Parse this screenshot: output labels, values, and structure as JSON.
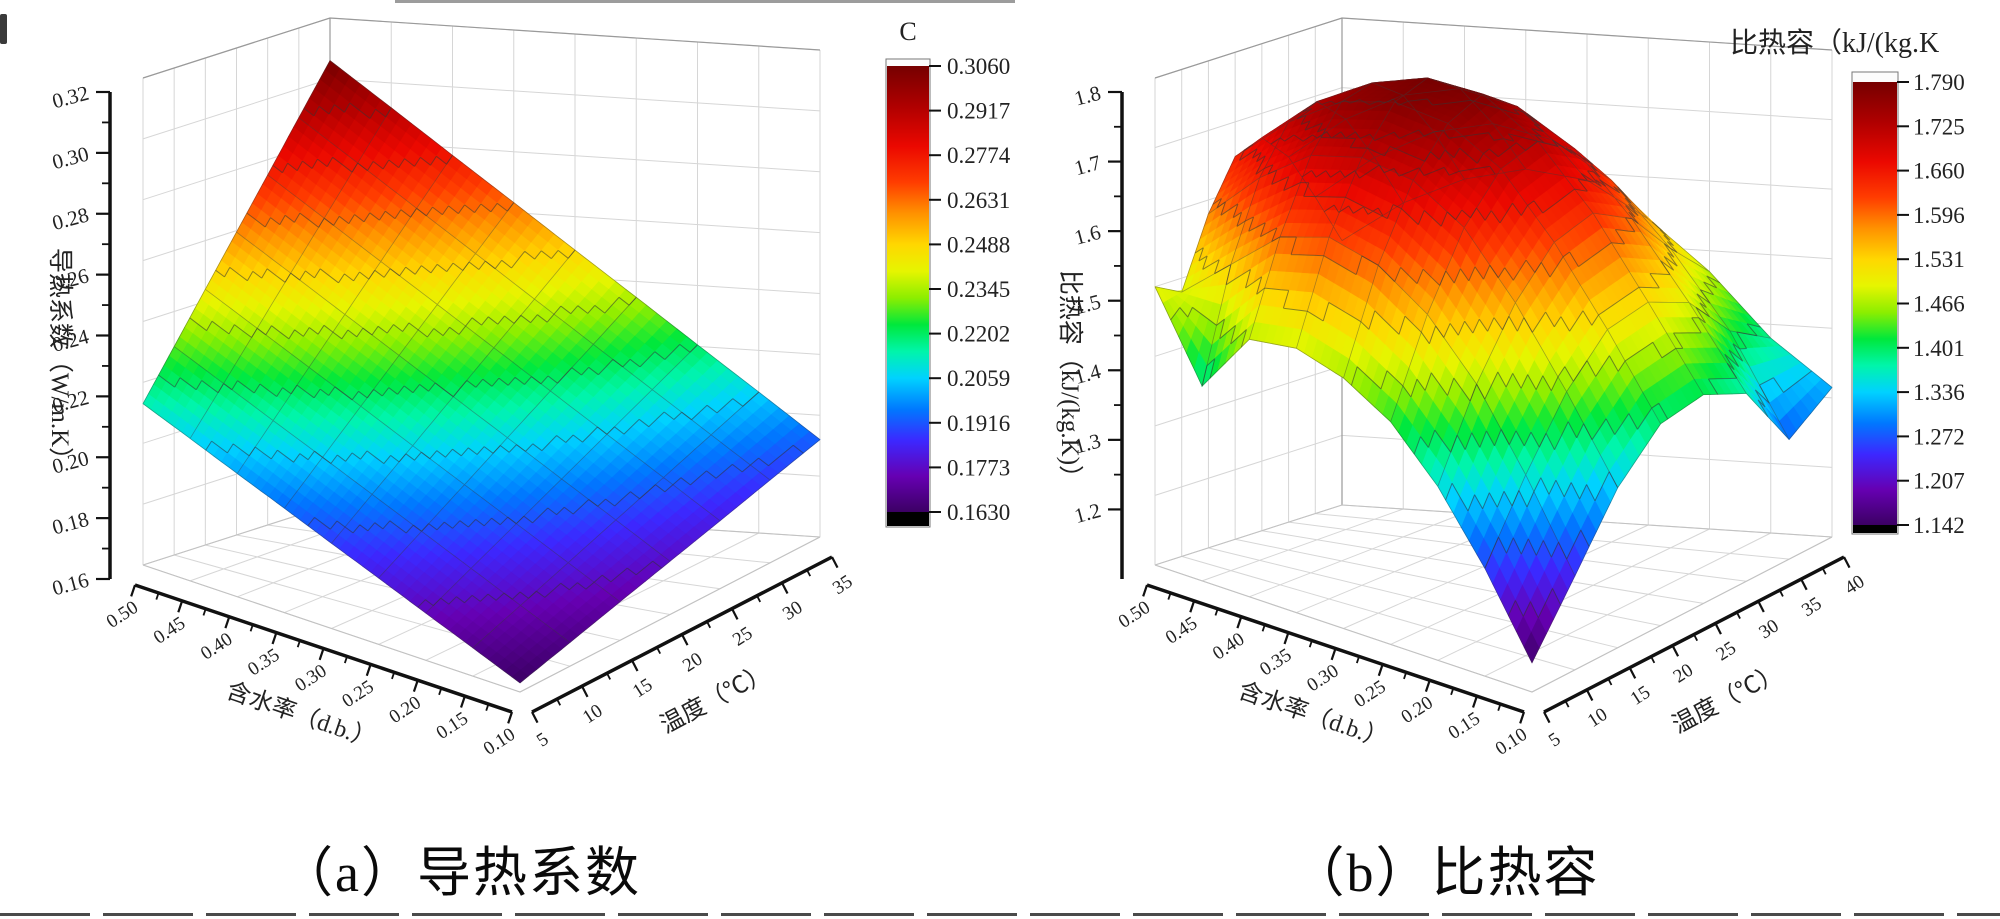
{
  "captions": {
    "a": "（a）导热系数",
    "b": "（b）比热容"
  },
  "palette": {
    "stops": [
      [
        0.0,
        "#3C0064"
      ],
      [
        0.08,
        "#6600B2"
      ],
      [
        0.16,
        "#3C28FF"
      ],
      [
        0.23,
        "#0078FF"
      ],
      [
        0.3,
        "#00D2FF"
      ],
      [
        0.36,
        "#00F5AA"
      ],
      [
        0.42,
        "#00E83C"
      ],
      [
        0.48,
        "#8CEE00"
      ],
      [
        0.54,
        "#E6F500"
      ],
      [
        0.6,
        "#FFD700"
      ],
      [
        0.67,
        "#FF9100"
      ],
      [
        0.74,
        "#FF3C00"
      ],
      [
        0.82,
        "#EB0800"
      ],
      [
        0.91,
        "#AF0000"
      ],
      [
        1.0,
        "#760000"
      ]
    ],
    "out_of_range_high": "#FCFCFC",
    "out_of_range_low": "#000000",
    "grid_color": "#d6d6d6",
    "axis_color": "#111111"
  },
  "chart_data": [
    {
      "type": "surface3d",
      "panel": "a",
      "caption": "（a）导热系数",
      "xlabel": "温度（℃）",
      "ylabel": "含水率（d.b.）",
      "zlabel": "导热系数（W/m.K）",
      "x_temperature": [
        5,
        10,
        15,
        20,
        25,
        30,
        35
      ],
      "x_ticklabels": [
        "5",
        "10",
        "15",
        "20",
        "25",
        "30",
        "35"
      ],
      "y_moisture": [
        0.1,
        0.15,
        0.2,
        0.25,
        0.3,
        0.35,
        0.4,
        0.45,
        0.5
      ],
      "y_ticklabels": [
        "0.10",
        "0.15",
        "0.20",
        "0.25",
        "0.30",
        "0.35",
        "0.40",
        "0.45",
        "0.50"
      ],
      "zlim": [
        0.16,
        0.32
      ],
      "z_tick_values": [
        0.16,
        0.18,
        0.2,
        0.22,
        0.24,
        0.26,
        0.28,
        0.3,
        0.32
      ],
      "z_ticklabels": [
        "0.16",
        "0.18",
        "0.20",
        "0.22",
        "0.24",
        "0.26",
        "0.28",
        "0.30",
        "0.32"
      ],
      "colorbar": {
        "title": "C",
        "min": 0.163,
        "max": 0.306,
        "labels": [
          "0.3060",
          "0.2917",
          "0.2774",
          "0.2631",
          "0.2488",
          "0.2345",
          "0.2202",
          "0.2059",
          "0.1916",
          "0.1773",
          "0.1630"
        ]
      },
      "values_rows_moisture_cols_temperature": [
        [
          0.163,
          0.1678,
          0.1727,
          0.1775,
          0.1823,
          0.1872,
          0.192
        ],
        [
          0.1693,
          0.1754,
          0.1816,
          0.1878,
          0.1939,
          0.2001,
          0.2063
        ],
        [
          0.1755,
          0.183,
          0.1905,
          0.198,
          0.2055,
          0.213,
          0.2205
        ],
        [
          0.1818,
          0.1906,
          0.1994,
          0.2083,
          0.2171,
          0.2259,
          0.2348
        ],
        [
          0.188,
          0.1982,
          0.2083,
          0.2185,
          0.2287,
          0.2388,
          0.249
        ],
        [
          0.1943,
          0.2058,
          0.2173,
          0.2288,
          0.2403,
          0.2518,
          0.2633
        ],
        [
          0.2005,
          0.2133,
          0.2262,
          0.239,
          0.2518,
          0.2647,
          0.2775
        ],
        [
          0.2068,
          0.2209,
          0.2351,
          0.2493,
          0.2634,
          0.2776,
          0.2918
        ],
        [
          0.213,
          0.2285,
          0.244,
          0.2595,
          0.275,
          0.2905,
          0.306
        ]
      ]
    },
    {
      "type": "surface3d",
      "panel": "b",
      "caption": "（b）比热容",
      "xlabel": "温度（℃）",
      "ylabel": "含水率（d.b.）",
      "zlabel": "比热容（kJ/(kg.K)）",
      "x_temperature": [
        5,
        10,
        15,
        20,
        25,
        30,
        35,
        40
      ],
      "x_ticklabels": [
        "5",
        "10",
        "15",
        "20",
        "25",
        "30",
        "35",
        "40"
      ],
      "y_moisture": [
        0.1,
        0.15,
        0.2,
        0.25,
        0.3,
        0.35,
        0.4,
        0.45,
        0.5
      ],
      "y_ticklabels": [
        "0.10",
        "0.15",
        "0.20",
        "0.25",
        "0.30",
        "0.35",
        "0.40",
        "0.45",
        "0.50"
      ],
      "zlim": [
        1.1,
        1.8
      ],
      "z_tick_values": [
        1.2,
        1.3,
        1.4,
        1.5,
        1.6,
        1.7,
        1.8
      ],
      "z_ticklabels": [
        "1.2",
        "1.3",
        "1.4",
        "1.5",
        "1.6",
        "1.7",
        "1.8"
      ],
      "colorbar": {
        "title": "比热容（kJ/(kg.K",
        "min": 1.142,
        "max": 1.79,
        "labels": [
          "1.790",
          "1.725",
          "1.660",
          "1.596",
          "1.531",
          "1.466",
          "1.401",
          "1.336",
          "1.272",
          "1.207",
          "1.142"
        ]
      },
      "values_rows_moisture_cols_temperature": [
        [
          1.142,
          1.235,
          1.33,
          1.39,
          1.4,
          1.37,
          1.272,
          1.315
        ],
        [
          1.255,
          1.36,
          1.45,
          1.51,
          1.52,
          1.49,
          1.42,
          1.38
        ],
        [
          1.35,
          1.47,
          1.56,
          1.62,
          1.635,
          1.6,
          1.53,
          1.47
        ],
        [
          1.42,
          1.55,
          1.65,
          1.71,
          1.725,
          1.69,
          1.62,
          1.54
        ],
        [
          1.46,
          1.6,
          1.7,
          1.76,
          1.78,
          1.74,
          1.67,
          1.59
        ],
        [
          1.48,
          1.62,
          1.715,
          1.775,
          1.79,
          1.755,
          1.685,
          1.6
        ],
        [
          1.47,
          1.6,
          1.7,
          1.76,
          1.77,
          1.735,
          1.665,
          1.58
        ],
        [
          1.38,
          1.54,
          1.65,
          1.715,
          1.73,
          1.69,
          1.62,
          1.54
        ],
        [
          1.5,
          1.48,
          1.58,
          1.65,
          1.665,
          1.625,
          1.555,
          1.48
        ]
      ]
    }
  ]
}
